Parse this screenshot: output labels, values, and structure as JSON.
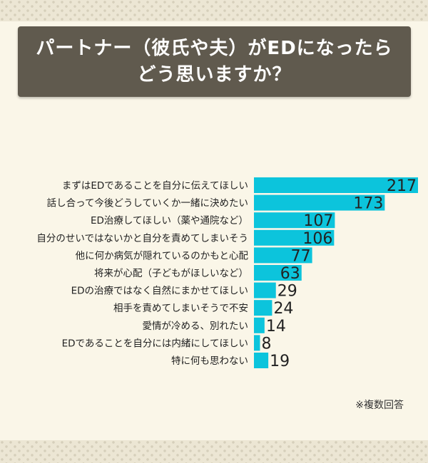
{
  "title": "パートナー（彼氏や夫）がEDになったら\nどう思いますか？",
  "note": "※複数回答",
  "colors": {
    "bar": "#0cc4dc",
    "background": "#faf6e8",
    "title_box": "#605a4e",
    "value_text": "#222222",
    "label_text": "#222222"
  },
  "chart_data": {
    "type": "bar",
    "orientation": "horizontal",
    "categories": [
      "まずはEDであることを自分に伝えてほしい",
      "話し合って今後どうしていくか一緒に決めたい",
      "ED治療してほしい（薬や通院など）",
      "自分のせいではないかと自分を責めてしまいそう",
      "他に何か病気が隠れているのかもと心配",
      "将来が心配（子どもがほしいなど）",
      "EDの治療ではなく自然にまかせてほしい",
      "相手を責めてしまいそうで不安",
      "愛情が冷める、別れたい",
      "EDであることを自分には内緒にしてほしい",
      "特に何も思わない"
    ],
    "values": [
      217,
      173,
      107,
      106,
      77,
      63,
      29,
      24,
      14,
      8,
      19
    ],
    "xlim": [
      0,
      217
    ],
    "grid": false,
    "legend": "none"
  }
}
